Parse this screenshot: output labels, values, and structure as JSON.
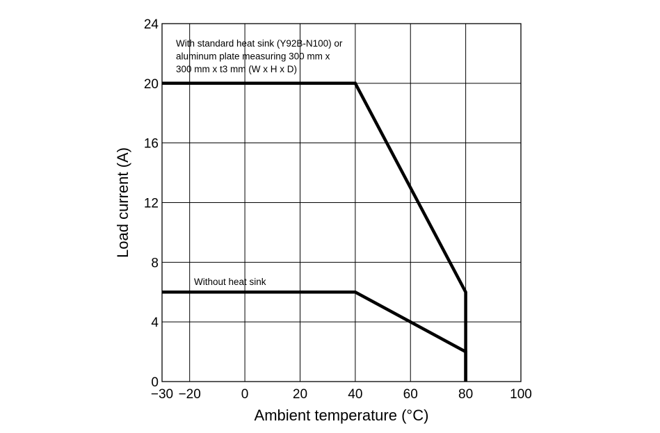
{
  "chart_data": {
    "type": "line",
    "xlabel": "Ambient temperature (°C)",
    "ylabel": "Load current (A)",
    "xlim": [
      -30,
      100
    ],
    "ylim": [
      0,
      24
    ],
    "x_ticks": [
      -30,
      -20,
      0,
      20,
      40,
      60,
      80,
      100
    ],
    "x_tick_labels": [
      "−30",
      "−20",
      "0",
      "20",
      "40",
      "60",
      "80",
      "100"
    ],
    "y_ticks": [
      0,
      4,
      8,
      12,
      16,
      20,
      24
    ],
    "y_tick_labels": [
      "0",
      "4",
      "8",
      "12",
      "16",
      "20",
      "24"
    ],
    "grid": true,
    "series": [
      {
        "x": [
          -30,
          40,
          80,
          80
        ],
        "y": [
          20,
          20,
          6,
          0
        ]
      },
      {
        "x": [
          -30,
          40,
          80,
          80
        ],
        "y": [
          6,
          6,
          2,
          0
        ]
      }
    ],
    "annotations": [
      {
        "lines": [
          "With standard heat sink (Y92B-N100) or",
          "aluminum plate measuring 300 mm x",
          "300 mm x t3 mm (W x H x D)"
        ]
      },
      {
        "lines": [
          "Without heat sink"
        ]
      }
    ],
    "color": "#000000"
  }
}
